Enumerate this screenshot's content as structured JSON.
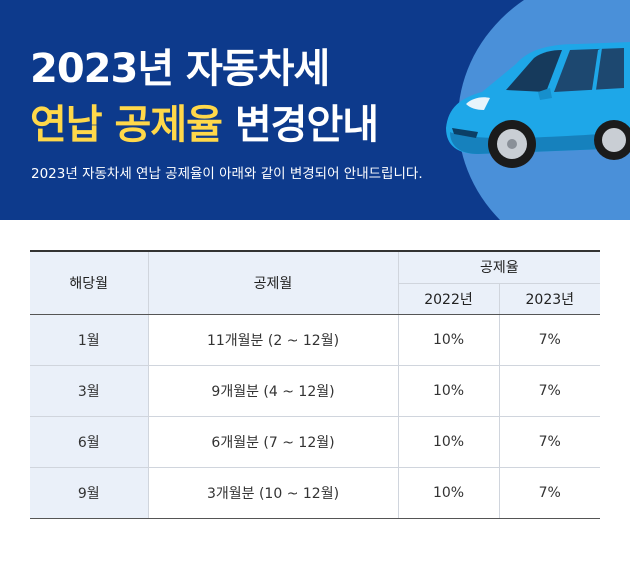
{
  "banner": {
    "title_line1": "2023년 자동차세",
    "title_line2_highlight": "연납 공제율",
    "title_line2_rest": "변경안내",
    "subtitle": "2023년 자동차세 연납 공제율이 아래와 같이 변경되어 안내드립니다.",
    "colors": {
      "background": "#0d3a8c",
      "highlight": "#ffd84a",
      "circle": "#4a90d9",
      "car": "#1ea7e8"
    }
  },
  "table": {
    "headers": {
      "month": "해당월",
      "period": "공제월",
      "rate": "공제율",
      "year_2022": "2022년",
      "year_2023": "2023년"
    },
    "rows": [
      {
        "month": "1월",
        "period": "11개월분 (2 ~ 12월)",
        "rate_2022": "10%",
        "rate_2023": "7%"
      },
      {
        "month": "3월",
        "period": "9개월분 (4 ~ 12월)",
        "rate_2022": "10%",
        "rate_2023": "7%"
      },
      {
        "month": "6월",
        "period": "6개월분 (7 ~ 12월)",
        "rate_2022": "10%",
        "rate_2023": "7%"
      },
      {
        "month": "9월",
        "period": "3개월분 (10 ~ 12월)",
        "rate_2022": "10%",
        "rate_2023": "7%"
      }
    ]
  }
}
